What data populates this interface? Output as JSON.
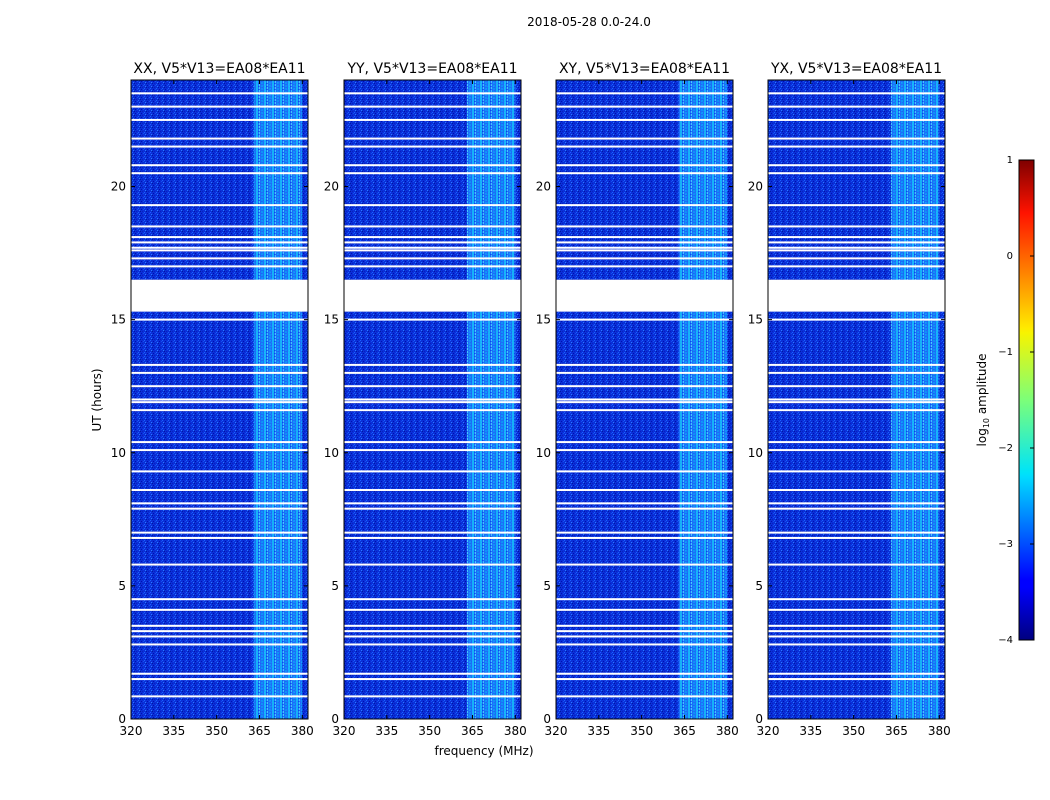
{
  "chart_data": {
    "type": "heatmap",
    "title": "2018-05-28 0.0-24.0",
    "xlabel": "frequency (MHz)",
    "ylabel": "UT (hours)",
    "xlim": [
      320,
      382
    ],
    "ylim": [
      0,
      24
    ],
    "xticks": [
      320,
      335,
      350,
      365,
      380
    ],
    "yticks": [
      0,
      5,
      10,
      15,
      20
    ],
    "panels": [
      {
        "title": "XX, V5*V13=EA08*EA11"
      },
      {
        "title": "YY, V5*V13=EA08*EA11"
      },
      {
        "title": "XY, V5*V13=EA08*EA11"
      },
      {
        "title": "YX, V5*V13=EA08*EA11"
      }
    ],
    "colorbar": {
      "label": "log",
      "label_sub": "10",
      "label_rest": " amplitude",
      "range": [
        -4,
        1
      ],
      "ticks": [
        1,
        0,
        -1,
        -2,
        -3,
        -4
      ],
      "tick_labels": [
        "1",
        "0",
        "−1",
        "−2",
        "−3",
        "−4"
      ],
      "colormap": "jet"
    },
    "rfi_band_mhz": [
      363,
      380
    ],
    "data_gap_hours": [
      15.3,
      16.5
    ],
    "flagged_hours": [
      0.85,
      1.5,
      1.7,
      2.8,
      3.1,
      3.3,
      3.5,
      4.1,
      4.5,
      5.8,
      6.8,
      7.0,
      7.9,
      8.1,
      8.6,
      9.3,
      10.1,
      10.4,
      11.6,
      11.9,
      12.0,
      12.5,
      13.0,
      13.3,
      15.0,
      17.0,
      17.3,
      17.6,
      17.7,
      17.9,
      18.1,
      18.5,
      19.3,
      20.5,
      20.8,
      21.5,
      21.8,
      22.5,
      23.0,
      23.5
    ]
  }
}
